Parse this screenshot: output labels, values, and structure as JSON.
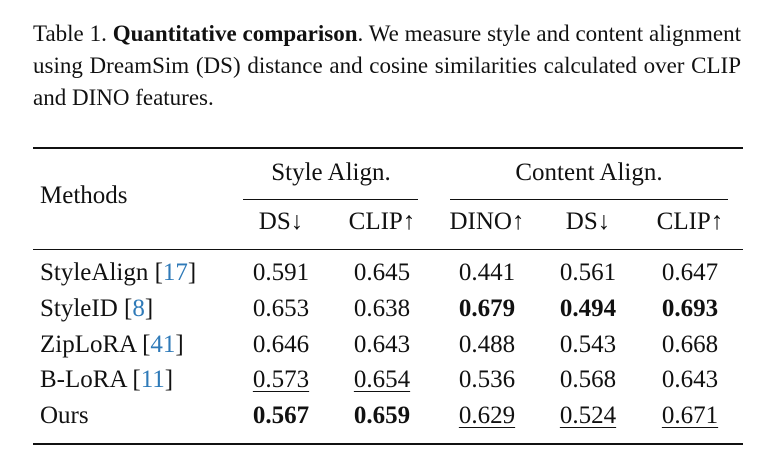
{
  "caption": {
    "label": "Table 1.",
    "bold": "Quantitative comparison",
    "text": ". We measure style and content alignment using DreamSim (DS) distance and cosine similarities calculated over CLIP and DINO features."
  },
  "table": {
    "corner": "Methods",
    "groups": [
      "Style Align.",
      "Content Align."
    ],
    "columns": [
      "DS↓",
      "CLIP↑",
      "DINO↑",
      "DS↓",
      "CLIP↑"
    ],
    "rows": [
      {
        "method": {
          "name": "StyleAlign",
          "open": "[",
          "ref": "17",
          "close": "]"
        },
        "values": [
          0.591,
          0.645,
          0.441,
          0.561,
          0.647
        ]
      },
      {
        "method": {
          "name": "StyleID",
          "open": "[",
          "ref": "8",
          "close": "]"
        },
        "values": [
          0.653,
          0.638,
          0.679,
          0.494,
          0.693
        ],
        "bold": [
          2,
          3,
          4
        ]
      },
      {
        "method": {
          "name": "ZipLoRA",
          "open": "[",
          "ref": "41",
          "close": "]"
        },
        "values": [
          0.646,
          0.643,
          0.488,
          0.543,
          0.668
        ]
      },
      {
        "method": {
          "name": "B-LoRA",
          "open": "[",
          "ref": "11",
          "close": "]"
        },
        "values": [
          0.573,
          0.654,
          0.536,
          0.568,
          0.643
        ],
        "underline": [
          0,
          1
        ]
      },
      {
        "method": {
          "name": "Ours",
          "open": "[",
          "ref": "",
          "close": "]"
        },
        "values": [
          0.567,
          0.659,
          0.629,
          0.524,
          0.671
        ],
        "bold": [
          0,
          1
        ],
        "underline": [
          2,
          3,
          4
        ]
      }
    ]
  }
}
